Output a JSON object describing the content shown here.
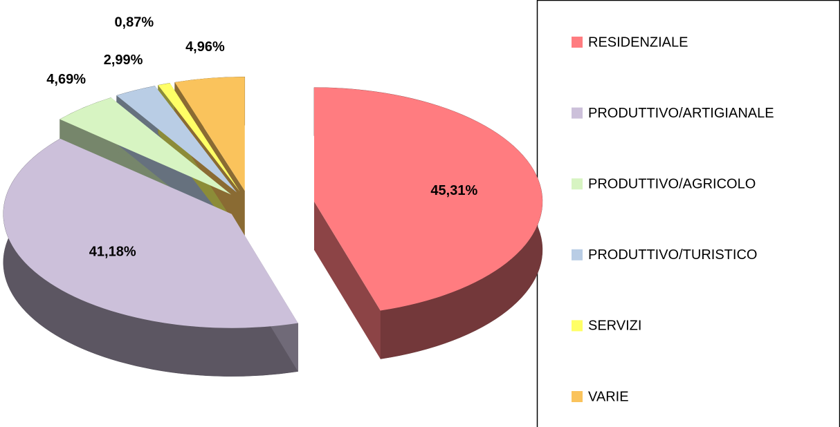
{
  "chart_data": {
    "type": "pie",
    "categories": [
      "RESIDENZIALE",
      "PRODUTTIVO/ARTIGIANALE",
      "PRODUTTIVO/AGRICOLO",
      "PRODUTTIVO/TURISTICO",
      "SERVIZI",
      "VARIE"
    ],
    "values": [
      45.31,
      41.18,
      4.69,
      2.99,
      0.87,
      4.96
    ],
    "value_labels": [
      "45,31%",
      "41,18%",
      "4,69%",
      "2,99%",
      "0,87%",
      "4,96%"
    ],
    "colors": [
      "#ff7c80",
      "#ccc0da",
      "#d7f4c2",
      "#b9cde5",
      "#ffff66",
      "#fac35c"
    ],
    "legend": "right"
  }
}
